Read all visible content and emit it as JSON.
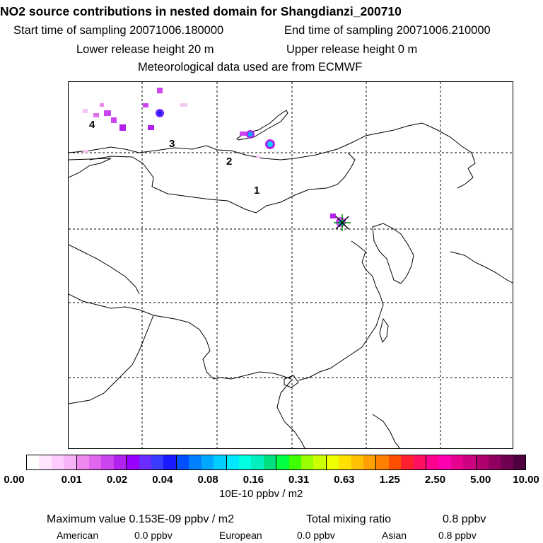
{
  "header": {
    "title": "NO2 source contributions in nested domain for Shangdianzi_200710",
    "start_label": "Start time of sampling 20071006.180000",
    "end_label": "End time of sampling 20071006.210000",
    "lower_label": "Lower release height   20 m",
    "upper_label": "Upper release height    0 m",
    "met_label": "Meteorological data used are from ECMWF"
  },
  "map": {
    "region_labels": [
      "1",
      "2",
      "3",
      "4"
    ],
    "station_marker": "Shangdianzi"
  },
  "colorbar": {
    "colors": [
      "#ffffff",
      "#ffe6ff",
      "#ffccff",
      "#f7b3f7",
      "#ee88ee",
      "#e066ee",
      "#cc44ee",
      "#b222ee",
      "#9a00ff",
      "#6a2cff",
      "#3a3cff",
      "#1a1aff",
      "#0050ff",
      "#0080ff",
      "#00a8ff",
      "#00ccff",
      "#00e8ff",
      "#00ffe0",
      "#00f0c0",
      "#00e080",
      "#00ff40",
      "#40ff00",
      "#99ff00",
      "#ccff00",
      "#eeff00",
      "#ffe000",
      "#ffc000",
      "#ffa000",
      "#ff8000",
      "#ff5000",
      "#ff2030",
      "#ff1060",
      "#ff0090",
      "#ff00b0",
      "#e60090",
      "#cc0080",
      "#b00070",
      "#900060",
      "#700050",
      "#500040"
    ],
    "tick_labels": [
      "0.00",
      "0.01",
      "0.02",
      "0.04",
      "0.08",
      "0.16",
      "0.31",
      "0.63",
      "1.25",
      "2.50",
      "5.00",
      "10.00"
    ],
    "units": "10E-10 ppbv / m2"
  },
  "stats": {
    "max_value": "Maximum value  0.153E-09 ppbv / m2",
    "total_mixing": "Total mixing ratio",
    "total_value": "0.8 ppbv",
    "american_label": "American",
    "american_value": "0.0 ppbv",
    "european_label": "European",
    "european_value": "0.0 ppbv",
    "asian_label": "Asian",
    "asian_value": "0.8 ppbv"
  }
}
